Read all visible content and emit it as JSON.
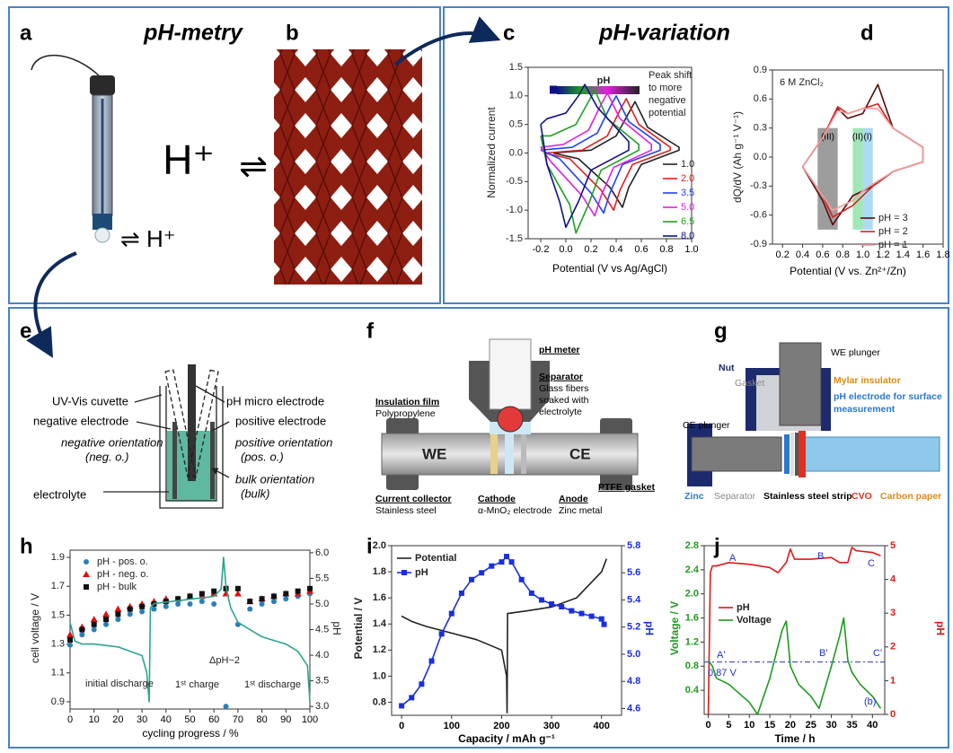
{
  "diagram": {
    "letters": [
      "a",
      "b",
      "c",
      "d",
      "e",
      "f",
      "g",
      "h",
      "i",
      "j"
    ],
    "titles": [
      "pH-metry",
      "pH-variation"
    ],
    "a": [
      "⇌ H⁺"
    ],
    "b": [
      "H⁺",
      "⇌"
    ],
    "e": [
      "UV-Vis cuvette",
      "pH micro electrode",
      "negative electrode",
      "positive electrode",
      "negative orientation",
      "(neg. o.)",
      "positive orientation",
      "(pos. o.)",
      "electrolyte",
      "bulk orientation",
      "(bulk)"
    ],
    "f": [
      "pH meter",
      "Separator",
      "Glass fibers",
      "soaked with",
      "electrolyte",
      "Insulation film",
      "Polypropylene",
      "WE",
      "CE",
      "Current collector",
      "Stainless steel",
      "Cathode",
      "α-MnO₂ electrode",
      "Anode",
      "Zinc metal",
      "PTFE gasket"
    ],
    "g": [
      "WE plunger",
      "Nut",
      "Gasket",
      "Mylar insulator",
      "pH electrode for surface",
      "measurement",
      "CE plunger",
      "Zinc",
      "Separator",
      "Stainless steel strip",
      "CVO",
      "Carbon paper"
    ]
  },
  "chart_data": [
    {
      "type": "line",
      "xlabel": "Potential (V vs Ag/AgCl)",
      "ylabel": "Normalized current",
      "annotations": [
        "pH",
        "Peak shift",
        "to more",
        "negative",
        "potential"
      ],
      "xlim": [
        -0.3,
        1.0
      ],
      "xticks": [
        -0.2,
        {
          "value": 0,
          "label": "0.0"
        },
        0.2,
        0.4,
        0.6,
        0.8,
        {
          "value": 1,
          "label": "1.0"
        }
      ],
      "ylim": [
        -1.5,
        1.5
      ],
      "yticks": [
        -1.5,
        {
          "value": -1,
          "label": "-1.0"
        },
        -0.5,
        {
          "value": 0,
          "label": "0.0"
        },
        0.5,
        {
          "value": 1,
          "label": "1.0"
        },
        1.5
      ],
      "series": [
        {
          "name": "1.0",
          "color": "#222222",
          "x": [
            -0.1,
            0.2,
            0.4,
            0.5,
            0.55,
            0.65,
            0.9,
            0.9,
            0.6,
            0.5,
            0.45,
            0.35,
            0.1,
            -0.1
          ],
          "values": [
            0,
            0.05,
            0.3,
            0.7,
            0.9,
            0.45,
            0.1,
            0.05,
            -0.2,
            -0.6,
            -0.95,
            -0.6,
            -0.1,
            0
          ]
        },
        {
          "name": "2.0",
          "color": "#e02020",
          "x": [
            -0.17,
            0.13,
            0.33,
            0.43,
            0.48,
            0.58,
            0.83,
            0.83,
            0.53,
            0.43,
            0.38,
            0.28,
            0.03,
            -0.17
          ],
          "values": [
            0,
            0.05,
            0.3,
            0.75,
            0.95,
            0.5,
            0.1,
            0.05,
            -0.2,
            -0.65,
            -1.0,
            -0.65,
            -0.1,
            0
          ]
        },
        {
          "name": "3.5",
          "color": "#2040ff",
          "x": [
            -0.2,
            0.05,
            0.25,
            0.35,
            0.4,
            0.5,
            0.75,
            0.75,
            0.45,
            0.35,
            0.3,
            0.2,
            -0.05,
            -0.2
          ],
          "values": [
            0.05,
            0.1,
            0.35,
            0.8,
            1.0,
            0.55,
            0.15,
            0.05,
            -0.2,
            -0.7,
            -1.05,
            -0.7,
            -0.1,
            0.05
          ]
        },
        {
          "name": "5.0",
          "color": "#e020e0",
          "x": [
            -0.2,
            -0.02,
            0.18,
            0.28,
            0.33,
            0.43,
            0.68,
            0.68,
            0.38,
            0.28,
            0.23,
            0.13,
            -0.12,
            -0.2
          ],
          "values": [
            0.1,
            0.15,
            0.4,
            0.85,
            1.05,
            0.6,
            0.15,
            0.05,
            -0.25,
            -0.75,
            -1.1,
            -0.75,
            -0.15,
            0.1
          ]
        },
        {
          "name": "6.5",
          "color": "#20a020",
          "x": [
            -0.2,
            -0.12,
            0.08,
            0.18,
            0.23,
            0.33,
            0.58,
            0.58,
            0.28,
            0.18,
            0.08,
            0.03,
            -0.15,
            -0.2
          ],
          "values": [
            0.3,
            0.3,
            0.5,
            0.9,
            1.1,
            0.6,
            0.15,
            0.05,
            -0.3,
            -0.9,
            -1.4,
            -0.9,
            -0.2,
            0.3
          ]
        },
        {
          "name": "8.0",
          "color": "#10108a",
          "x": [
            -0.2,
            -0.15,
            0.0,
            0.1,
            0.15,
            0.25,
            0.5,
            0.5,
            0.2,
            0.1,
            0.0,
            -0.05,
            -0.15,
            -0.2
          ],
          "values": [
            0.5,
            0.6,
            0.7,
            1.0,
            1.2,
            0.8,
            0.2,
            0.05,
            -0.3,
            -0.85,
            -1.3,
            -0.85,
            -0.2,
            0.5
          ]
        }
      ]
    },
    {
      "type": "line",
      "xlabel": "Potential (V vs. Zn²⁺/Zn)",
      "ylabel": "dQ/dV (Ah g⁻¹ V⁻¹)",
      "annotations": [
        "6 M ZnCl₂"
      ],
      "xlim": [
        0.1,
        1.8
      ],
      "xticks": [
        0.2,
        0.4,
        0.6,
        0.8,
        {
          "value": 1,
          "label": "1.0"
        },
        1.2,
        1.4,
        1.6,
        1.8
      ],
      "ylim": [
        -0.9,
        0.9
      ],
      "yticks": [
        -0.9,
        -0.6,
        -0.3,
        {
          "value": 0,
          "label": "0.0"
        },
        0.3,
        0.6,
        0.9
      ],
      "regions": [
        {
          "label": "(III)",
          "x": [
            0.55,
            0.75
          ],
          "y": [
            -0.75,
            0.3
          ],
          "color": "#8c8c8c"
        },
        {
          "label": "(II)",
          "x": [
            0.9,
            1.0
          ],
          "y": [
            -0.75,
            0.3
          ],
          "color": "#8fe3a8"
        },
        {
          "label": "(I)",
          "x": [
            1.0,
            1.1
          ],
          "y": [
            -0.75,
            0.3
          ],
          "color": "#9fd4f2"
        }
      ],
      "series": [
        {
          "name": "pH = 3",
          "color": "#5a0a0a",
          "x": [
            0.4,
            0.6,
            0.75,
            0.85,
            1.0,
            1.15,
            1.3,
            1.6,
            1.6,
            1.3,
            1.1,
            1.0,
            0.9,
            0.7,
            0.6,
            0.4
          ],
          "values": [
            -0.1,
            0.2,
            0.5,
            0.4,
            0.45,
            0.75,
            0.3,
            0.1,
            -0.05,
            -0.15,
            -0.3,
            -0.35,
            -0.4,
            -0.7,
            -0.45,
            -0.1
          ]
        },
        {
          "name": "pH = 2",
          "color": "#d42020",
          "x": [
            0.4,
            0.6,
            0.75,
            0.85,
            1.0,
            1.15,
            1.3,
            1.6,
            1.6,
            1.3,
            1.1,
            1.0,
            0.9,
            0.7,
            0.6,
            0.4
          ],
          "values": [
            -0.1,
            0.2,
            0.52,
            0.45,
            0.5,
            0.55,
            0.3,
            0.1,
            -0.05,
            -0.15,
            -0.3,
            -0.4,
            -0.5,
            -0.62,
            -0.4,
            -0.1
          ]
        },
        {
          "name": "pH = 1",
          "color": "#f0a0a0",
          "x": [
            0.4,
            0.6,
            0.75,
            0.85,
            1.0,
            1.15,
            1.3,
            1.6,
            1.6,
            1.3,
            1.1,
            1.0,
            0.9,
            0.7,
            0.6,
            0.4
          ],
          "values": [
            -0.1,
            0.2,
            0.48,
            0.45,
            0.5,
            0.5,
            0.3,
            0.1,
            -0.05,
            -0.15,
            -0.28,
            -0.35,
            -0.45,
            -0.55,
            -0.4,
            -0.1
          ]
        }
      ]
    },
    {
      "type": "line",
      "xlabel": "cycling progress / %",
      "ylabel": "cell voltage / V",
      "y2label": "pH",
      "annotations": [
        "initial discharge",
        "1ˢᵗ charge",
        "1ˢᵗ discharge",
        "ΔpH~2"
      ],
      "x": [
        0,
        5,
        10,
        15,
        20,
        25,
        30,
        35,
        40,
        45,
        50,
        55,
        60,
        65,
        70,
        75,
        80,
        85,
        90,
        95,
        100
      ],
      "xlim": [
        0,
        100
      ],
      "xticks": [
        0,
        10,
        20,
        30,
        40,
        50,
        60,
        70,
        80,
        90,
        100
      ],
      "ylim": [
        0.85,
        1.95
      ],
      "yticks": [
        0.9,
        1.1,
        1.3,
        1.5,
        1.7,
        1.9
      ],
      "y2lim": [
        2.95,
        6.05
      ],
      "y2ticks": [
        {
          "value": 3,
          "label": "3.0"
        },
        3.5,
        {
          "value": 4,
          "label": "4.0"
        },
        4.5,
        {
          "value": 5,
          "label": "5.0"
        },
        5.5,
        {
          "value": 6,
          "label": "6.0"
        }
      ],
      "series": [
        {
          "name": "pH - pos. o.",
          "color": "#2b7fb8",
          "axis": "y2",
          "mode": "markers",
          "marker": "circle",
          "values": [
            4.2,
            4.4,
            4.5,
            4.6,
            4.7,
            4.8,
            4.85,
            4.9,
            4.95,
            5.0,
            5.0,
            5.05,
            5.0,
            3.0,
            4.6,
            4.9,
            5.0,
            5.05,
            5.1,
            5.15,
            5.2
          ]
        },
        {
          "name": "pH - neg. o.",
          "color": "#e01010",
          "axis": "y2",
          "mode": "markers",
          "marker": "triangle",
          "values": [
            4.4,
            4.55,
            4.7,
            4.8,
            4.9,
            4.95,
            5.0,
            5.05,
            5.1,
            5.1,
            5.15,
            5.15,
            5.2,
            5.2,
            5.2,
            5.05,
            5.1,
            5.15,
            5.2,
            5.2,
            5.25
          ]
        },
        {
          "name": "pH - bulk",
          "color": "#111111",
          "axis": "y2",
          "mode": "markers",
          "marker": "square",
          "values": [
            4.3,
            4.5,
            4.6,
            4.7,
            4.8,
            4.9,
            4.95,
            5.0,
            5.05,
            5.1,
            5.15,
            5.2,
            5.25,
            5.3,
            5.3,
            5.05,
            5.1,
            5.15,
            5.2,
            5.25,
            5.3
          ]
        },
        {
          "color": "#2aa58f",
          "x": [
            0,
            2,
            5,
            10,
            20,
            30,
            32,
            33,
            33.5,
            35,
            45,
            55,
            60,
            63,
            64,
            65,
            66,
            67,
            70,
            80,
            90,
            95,
            99,
            100
          ],
          "values": [
            1.45,
            1.32,
            1.3,
            1.3,
            1.28,
            1.22,
            1.1,
            0.9,
            1.55,
            1.58,
            1.6,
            1.62,
            1.63,
            1.68,
            1.9,
            1.7,
            1.62,
            1.55,
            1.45,
            1.35,
            1.3,
            1.25,
            1.15,
            0.9
          ]
        }
      ]
    },
    {
      "type": "line",
      "xlabel": "Capacity / mAh g⁻¹",
      "ylabel": "Potential / V",
      "y2label": "pH",
      "y2_color": "#1a2ee0",
      "xlim": [
        -20,
        440
      ],
      "xticks": [
        0,
        100,
        200,
        300,
        400
      ],
      "ylim": [
        0.7,
        2.0
      ],
      "yticks": [
        0.8,
        {
          "value": 1,
          "label": "1.0"
        },
        1.2,
        1.4,
        1.6,
        1.8,
        {
          "value": 2,
          "label": "2.0"
        }
      ],
      "y2lim": [
        4.55,
        5.8
      ],
      "y2ticks": [
        4.6,
        4.8,
        {
          "value": 5,
          "label": "5.0"
        },
        5.2,
        5.4,
        5.6,
        5.8
      ],
      "series": [
        {
          "name": "Potential",
          "color": "#222222",
          "x": [
            0,
            20,
            50,
            100,
            150,
            200,
            210,
            211,
            212,
            250,
            300,
            350,
            400,
            410
          ],
          "values": [
            1.46,
            1.42,
            1.38,
            1.33,
            1.28,
            1.2,
            1.0,
            0.72,
            1.48,
            1.5,
            1.53,
            1.6,
            1.8,
            1.9
          ]
        },
        {
          "name": "pH",
          "color": "#1a2ee0",
          "axis": "y2",
          "mode": "line+markers",
          "marker": "square",
          "x": [
            0,
            20,
            40,
            60,
            80,
            100,
            120,
            140,
            160,
            180,
            200,
            210,
            220,
            240,
            260,
            280,
            300,
            320,
            340,
            360,
            380,
            400,
            405
          ],
          "values": [
            4.62,
            4.68,
            4.78,
            4.95,
            5.15,
            5.3,
            5.45,
            5.55,
            5.6,
            5.65,
            5.68,
            5.72,
            5.68,
            5.55,
            5.45,
            5.4,
            5.37,
            5.35,
            5.32,
            5.3,
            5.28,
            5.26,
            5.22
          ]
        }
      ]
    },
    {
      "type": "line",
      "xlabel": "Time / h",
      "ylabel": "Voltage / V",
      "y2label": "pH",
      "y_color": "#1e9a1e",
      "y2_color": "#e01818",
      "annotations": [
        "A",
        "B",
        "C",
        "A'",
        "B'",
        "C'",
        "0.87 V",
        "(b)"
      ],
      "hline": 0.87,
      "xlim": [
        -1,
        43
      ],
      "xticks": [
        0,
        5,
        10,
        15,
        20,
        25,
        30,
        35,
        40
      ],
      "ylim": [
        0,
        2.8
      ],
      "yticks": [
        0.4,
        0.8,
        1.2,
        1.6,
        {
          "value": 2,
          "label": "2.0"
        },
        2.4,
        2.8
      ],
      "y2lim": [
        0,
        5
      ],
      "y2ticks": [
        0,
        1,
        2,
        3,
        4,
        5
      ],
      "series": [
        {
          "name": "pH",
          "color": "#e01818",
          "axis": "y2",
          "x": [
            0,
            0.5,
            1,
            2,
            5,
            10,
            15,
            17,
            19,
            20,
            21,
            25,
            30,
            32,
            34,
            35,
            36,
            40,
            42
          ],
          "values": [
            0,
            4.2,
            4.4,
            4.4,
            4.5,
            4.45,
            4.35,
            4.2,
            4.5,
            4.9,
            4.6,
            4.6,
            4.65,
            4.5,
            4.5,
            4.95,
            4.85,
            4.8,
            4.7
          ]
        },
        {
          "name": "Voltage",
          "color": "#1e9a1e",
          "x": [
            0,
            1,
            2,
            5,
            10,
            12,
            15,
            18,
            19,
            20,
            22,
            25,
            27,
            30,
            32,
            33,
            34,
            35,
            37,
            40,
            42
          ],
          "values": [
            0.9,
            0.8,
            0.6,
            0.5,
            0.2,
            0.0,
            0.6,
            1.4,
            1.55,
            0.8,
            0.5,
            0.3,
            0.1,
            0.8,
            1.3,
            1.6,
            0.9,
            0.7,
            0.5,
            0.3,
            0.1
          ]
        }
      ]
    }
  ]
}
